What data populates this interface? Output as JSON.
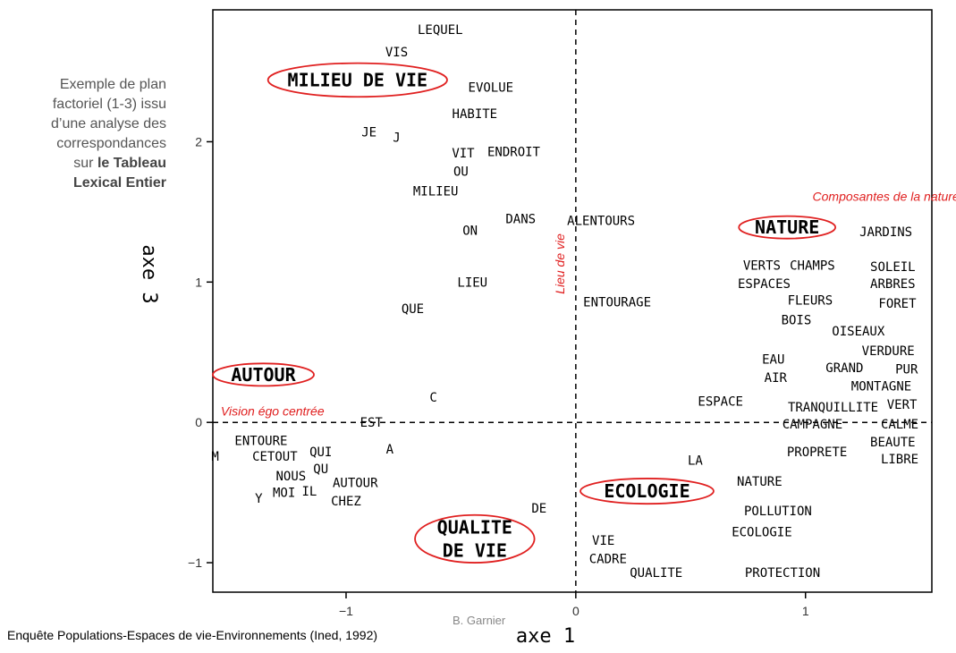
{
  "side_note": {
    "line1": "Exemple de plan",
    "line2": "factoriel (1-3) issu",
    "line3": "d’une analyse des",
    "line4": "correspondances",
    "line5_prefix": "sur ",
    "line5_bold": "le Tableau",
    "line6_bold": "Lexical Entier"
  },
  "source_text": "Enquête Populations-Espaces de vie-Environnements (Ined, 1992)",
  "author": "B. Garnier",
  "chart_data": {
    "type": "scatter",
    "xlabel": "axe 1",
    "ylabel": "axe 3",
    "xlim": [
      -1.58,
      1.55
    ],
    "ylim": [
      -1.21,
      2.94
    ],
    "xticks": [
      {
        "value": -1,
        "label": "−1"
      },
      {
        "value": 0,
        "label": "0"
      },
      {
        "value": 1,
        "label": "1"
      }
    ],
    "yticks": [
      {
        "value": -1,
        "label": "−1"
      },
      {
        "value": 0,
        "label": "0"
      },
      {
        "value": 1,
        "label": "1"
      },
      {
        "value": 2,
        "label": "2"
      }
    ],
    "grid": false,
    "reference_lines": [
      "x=0 dashed",
      "y=0 dashed"
    ],
    "points": [
      {
        "label": "LEQUEL",
        "x": -0.59,
        "y": 2.8
      },
      {
        "label": "VIS",
        "x": -0.78,
        "y": 2.64
      },
      {
        "label": "EVOLUE",
        "x": -0.37,
        "y": 2.39
      },
      {
        "label": "HABITE",
        "x": -0.44,
        "y": 2.2
      },
      {
        "label": "JE",
        "x": -0.9,
        "y": 2.07
      },
      {
        "label": "J",
        "x": -0.78,
        "y": 2.03
      },
      {
        "label": "VIT",
        "x": -0.49,
        "y": 1.92
      },
      {
        "label": "ENDROIT",
        "x": -0.27,
        "y": 1.93
      },
      {
        "label": "OU",
        "x": -0.5,
        "y": 1.79
      },
      {
        "label": "MILIEU",
        "x": -0.61,
        "y": 1.65
      },
      {
        "label": "DANS",
        "x": -0.24,
        "y": 1.45
      },
      {
        "label": "ALENTOURS",
        "x": 0.11,
        "y": 1.44
      },
      {
        "label": "ON",
        "x": -0.46,
        "y": 1.37
      },
      {
        "label": "LIEU",
        "x": -0.45,
        "y": 1.0
      },
      {
        "label": "QUE",
        "x": -0.71,
        "y": 0.81
      },
      {
        "label": "ENTOURAGE",
        "x": 0.18,
        "y": 0.86
      },
      {
        "label": "C",
        "x": -0.62,
        "y": 0.18
      },
      {
        "label": "EST",
        "x": -0.89,
        "y": 0.0
      },
      {
        "label": "A",
        "x": -0.81,
        "y": -0.19
      },
      {
        "label": "ENTOURE",
        "x": -1.37,
        "y": -0.13
      },
      {
        "label": "M",
        "x": -1.57,
        "y": -0.24
      },
      {
        "label": "CETOUT",
        "x": -1.31,
        "y": -0.24
      },
      {
        "label": "QUI",
        "x": -1.11,
        "y": -0.21
      },
      {
        "label": "QU",
        "x": -1.11,
        "y": -0.33
      },
      {
        "label": "NOUS",
        "x": -1.24,
        "y": -0.38
      },
      {
        "label": "AUTOUR",
        "x": -0.96,
        "y": -0.43
      },
      {
        "label": "MOI",
        "x": -1.27,
        "y": -0.5
      },
      {
        "label": "IL",
        "x": -1.16,
        "y": -0.49
      },
      {
        "label": "Y",
        "x": -1.38,
        "y": -0.54
      },
      {
        "label": "CHEZ",
        "x": -1.0,
        "y": -0.56
      },
      {
        "label": "DE",
        "x": -0.16,
        "y": -0.61
      },
      {
        "label": "VIE",
        "x": 0.12,
        "y": -0.84
      },
      {
        "label": "CADRE",
        "x": 0.14,
        "y": -0.97
      },
      {
        "label": "QUALITE",
        "x": 0.35,
        "y": -1.07
      },
      {
        "label": "LA",
        "x": 0.52,
        "y": -0.27
      },
      {
        "label": "NATURE",
        "x": 0.8,
        "y": -0.42
      },
      {
        "label": "POLLUTION",
        "x": 0.88,
        "y": -0.63
      },
      {
        "label": "ECOLOGIE",
        "x": 0.81,
        "y": -0.78
      },
      {
        "label": "PROTECTION",
        "x": 0.9,
        "y": -1.07
      },
      {
        "label": "JARDINS",
        "x": 1.35,
        "y": 1.36
      },
      {
        "label": "VERTS",
        "x": 0.81,
        "y": 1.12
      },
      {
        "label": "CHAMPS",
        "x": 1.03,
        "y": 1.12
      },
      {
        "label": "SOLEIL",
        "x": 1.38,
        "y": 1.11
      },
      {
        "label": "ESPACES",
        "x": 0.82,
        "y": 0.99
      },
      {
        "label": "ARBRES",
        "x": 1.38,
        "y": 0.99
      },
      {
        "label": "FLEURS",
        "x": 1.02,
        "y": 0.87
      },
      {
        "label": "FORET",
        "x": 1.4,
        "y": 0.85
      },
      {
        "label": "BOIS",
        "x": 0.96,
        "y": 0.73
      },
      {
        "label": "OISEAUX",
        "x": 1.23,
        "y": 0.65
      },
      {
        "label": "VERDURE",
        "x": 1.36,
        "y": 0.51
      },
      {
        "label": "EAU",
        "x": 0.86,
        "y": 0.45
      },
      {
        "label": "GRAND",
        "x": 1.17,
        "y": 0.39
      },
      {
        "label": "PUR",
        "x": 1.44,
        "y": 0.38
      },
      {
        "label": "AIR",
        "x": 0.87,
        "y": 0.32
      },
      {
        "label": "MONTAGNE",
        "x": 1.33,
        "y": 0.26
      },
      {
        "label": "ESPACE",
        "x": 0.63,
        "y": 0.15
      },
      {
        "label": "TRANQUILLITE",
        "x": 1.12,
        "y": 0.11
      },
      {
        "label": "VERT",
        "x": 1.42,
        "y": 0.13
      },
      {
        "label": "CAMPAGNE",
        "x": 1.03,
        "y": -0.01
      },
      {
        "label": "CALME",
        "x": 1.41,
        "y": -0.01
      },
      {
        "label": "BEAUTE",
        "x": 1.38,
        "y": -0.14
      },
      {
        "label": "PROPRETE",
        "x": 1.05,
        "y": -0.21
      },
      {
        "label": "LIBRE",
        "x": 1.41,
        "y": -0.26
      }
    ],
    "clusters": [
      {
        "label": "MILIEU DE VIE",
        "x": -0.95,
        "y": 2.44,
        "rx": 0.39,
        "ry": 0.12
      },
      {
        "label": "NATURE",
        "x": 0.92,
        "y": 1.39,
        "rx": 0.21,
        "ry": 0.08
      },
      {
        "label": "AUTOUR",
        "x": -1.36,
        "y": 0.34,
        "rx": 0.22,
        "ry": 0.08
      },
      {
        "label": "ECOLOGIE",
        "x": 0.31,
        "y": -0.49,
        "rx": 0.29,
        "ry": 0.09
      },
      {
        "label": "QUALITE|DE VIE",
        "x": -0.44,
        "y": -0.83,
        "rx": 0.26,
        "ry": 0.17
      }
    ],
    "annotations": [
      {
        "text": "Composantes de la nature",
        "x": 1.35,
        "y": 1.58,
        "rotation": 0
      },
      {
        "text": "Lieu de vie",
        "x": -0.05,
        "y": 1.13,
        "rotation": -90
      },
      {
        "text": "Vision égo centrée",
        "x": -1.32,
        "y": 0.05,
        "rotation": 0
      }
    ],
    "colors": {
      "ink": "#000000",
      "ellipse": "#e02020",
      "annotation": "#e02020",
      "tick_label": "#333333"
    }
  }
}
